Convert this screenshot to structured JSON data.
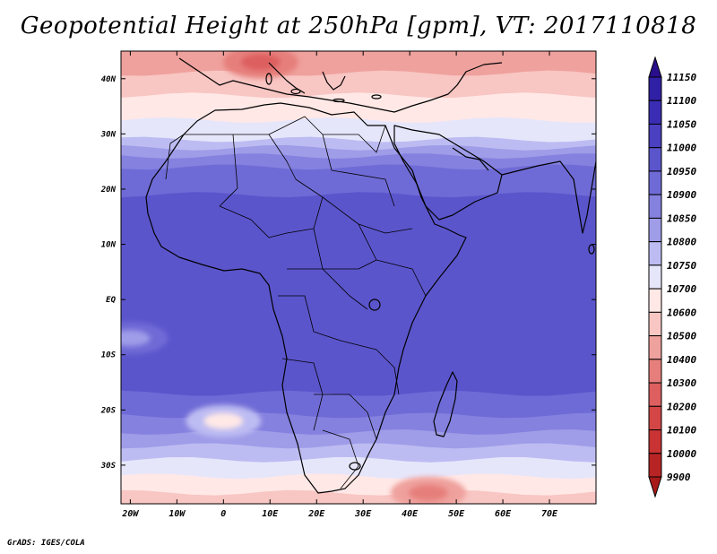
{
  "title": "Geopotential Height at 250hPa [gpm], VT: 2017110818",
  "credit": "GrADS: IGES/COLA",
  "chart_data": {
    "type": "heatmap",
    "variable": "Geopotential Height",
    "level": "250hPa",
    "units": "gpm",
    "valid_time": "2017110818",
    "x_range": [
      -22,
      80
    ],
    "y_range": [
      -37,
      45
    ],
    "x_ticks": [
      -20,
      -10,
      0,
      10,
      20,
      30,
      40,
      50,
      60,
      70
    ],
    "x_tick_labels": [
      "20W",
      "10W",
      "0",
      "10E",
      "20E",
      "30E",
      "40E",
      "50E",
      "60E",
      "70E"
    ],
    "y_ticks": [
      40,
      30,
      20,
      10,
      0,
      -10,
      -20,
      -30
    ],
    "y_tick_labels": [
      "40N",
      "30N",
      "20N",
      "10N",
      "EQ",
      "10S",
      "20S",
      "30S"
    ],
    "colorbar": {
      "levels": [
        11150,
        11100,
        11050,
        11000,
        10950,
        10900,
        10850,
        10800,
        10750,
        10700,
        10600,
        10500,
        10400,
        10300,
        10200,
        10100,
        10000,
        9900
      ],
      "colors": [
        "#2a0f8c",
        "#3020a6",
        "#3a2db4",
        "#4a40c0",
        "#5b55cc",
        "#6f6bd6",
        "#8581df",
        "#9f9ce8",
        "#bdbcf2",
        "#e6e6fb",
        "#ffe8e6",
        "#f8c6c3",
        "#efa19d",
        "#e67f7c",
        "#dd5f5f",
        "#d44646",
        "#c93333",
        "#b82424",
        "#a81a1a"
      ]
    },
    "field_bands": [
      {
        "lat": 44,
        "value": 10400
      },
      {
        "lat": 41,
        "value": 10500
      },
      {
        "lat": 37,
        "value": 10600
      },
      {
        "lat": 32.5,
        "value": 10700
      },
      {
        "lat": 29,
        "value": 10750
      },
      {
        "lat": 27.5,
        "value": 10800
      },
      {
        "lat": 26,
        "value": 10850
      },
      {
        "lat": 24,
        "value": 10900
      },
      {
        "lat": 19,
        "value": 10950
      },
      {
        "lat": 0,
        "value": 10950
      },
      {
        "lat": -12,
        "value": 10950
      },
      {
        "lat": -17,
        "value": 10900
      },
      {
        "lat": -21,
        "value": 10850
      },
      {
        "lat": -24,
        "value": 10800
      },
      {
        "lat": -26.5,
        "value": 10750
      },
      {
        "lat": -29,
        "value": 10700
      },
      {
        "lat": -32,
        "value": 10600
      },
      {
        "lat": -35,
        "value": 10500
      }
    ],
    "features": [
      {
        "name": "low-over-mediterranean",
        "lon": 8,
        "lat": 43,
        "value": 10300
      },
      {
        "name": "high-10s-atlantic",
        "lon": -20,
        "lat": -7,
        "value": 10900
      },
      {
        "name": "low-southern-atlantic",
        "lon": 0,
        "lat": -22,
        "value": 10750
      },
      {
        "name": "low-sw-indian-ocean",
        "lon": 44,
        "lat": -35,
        "value": 10400
      }
    ]
  }
}
